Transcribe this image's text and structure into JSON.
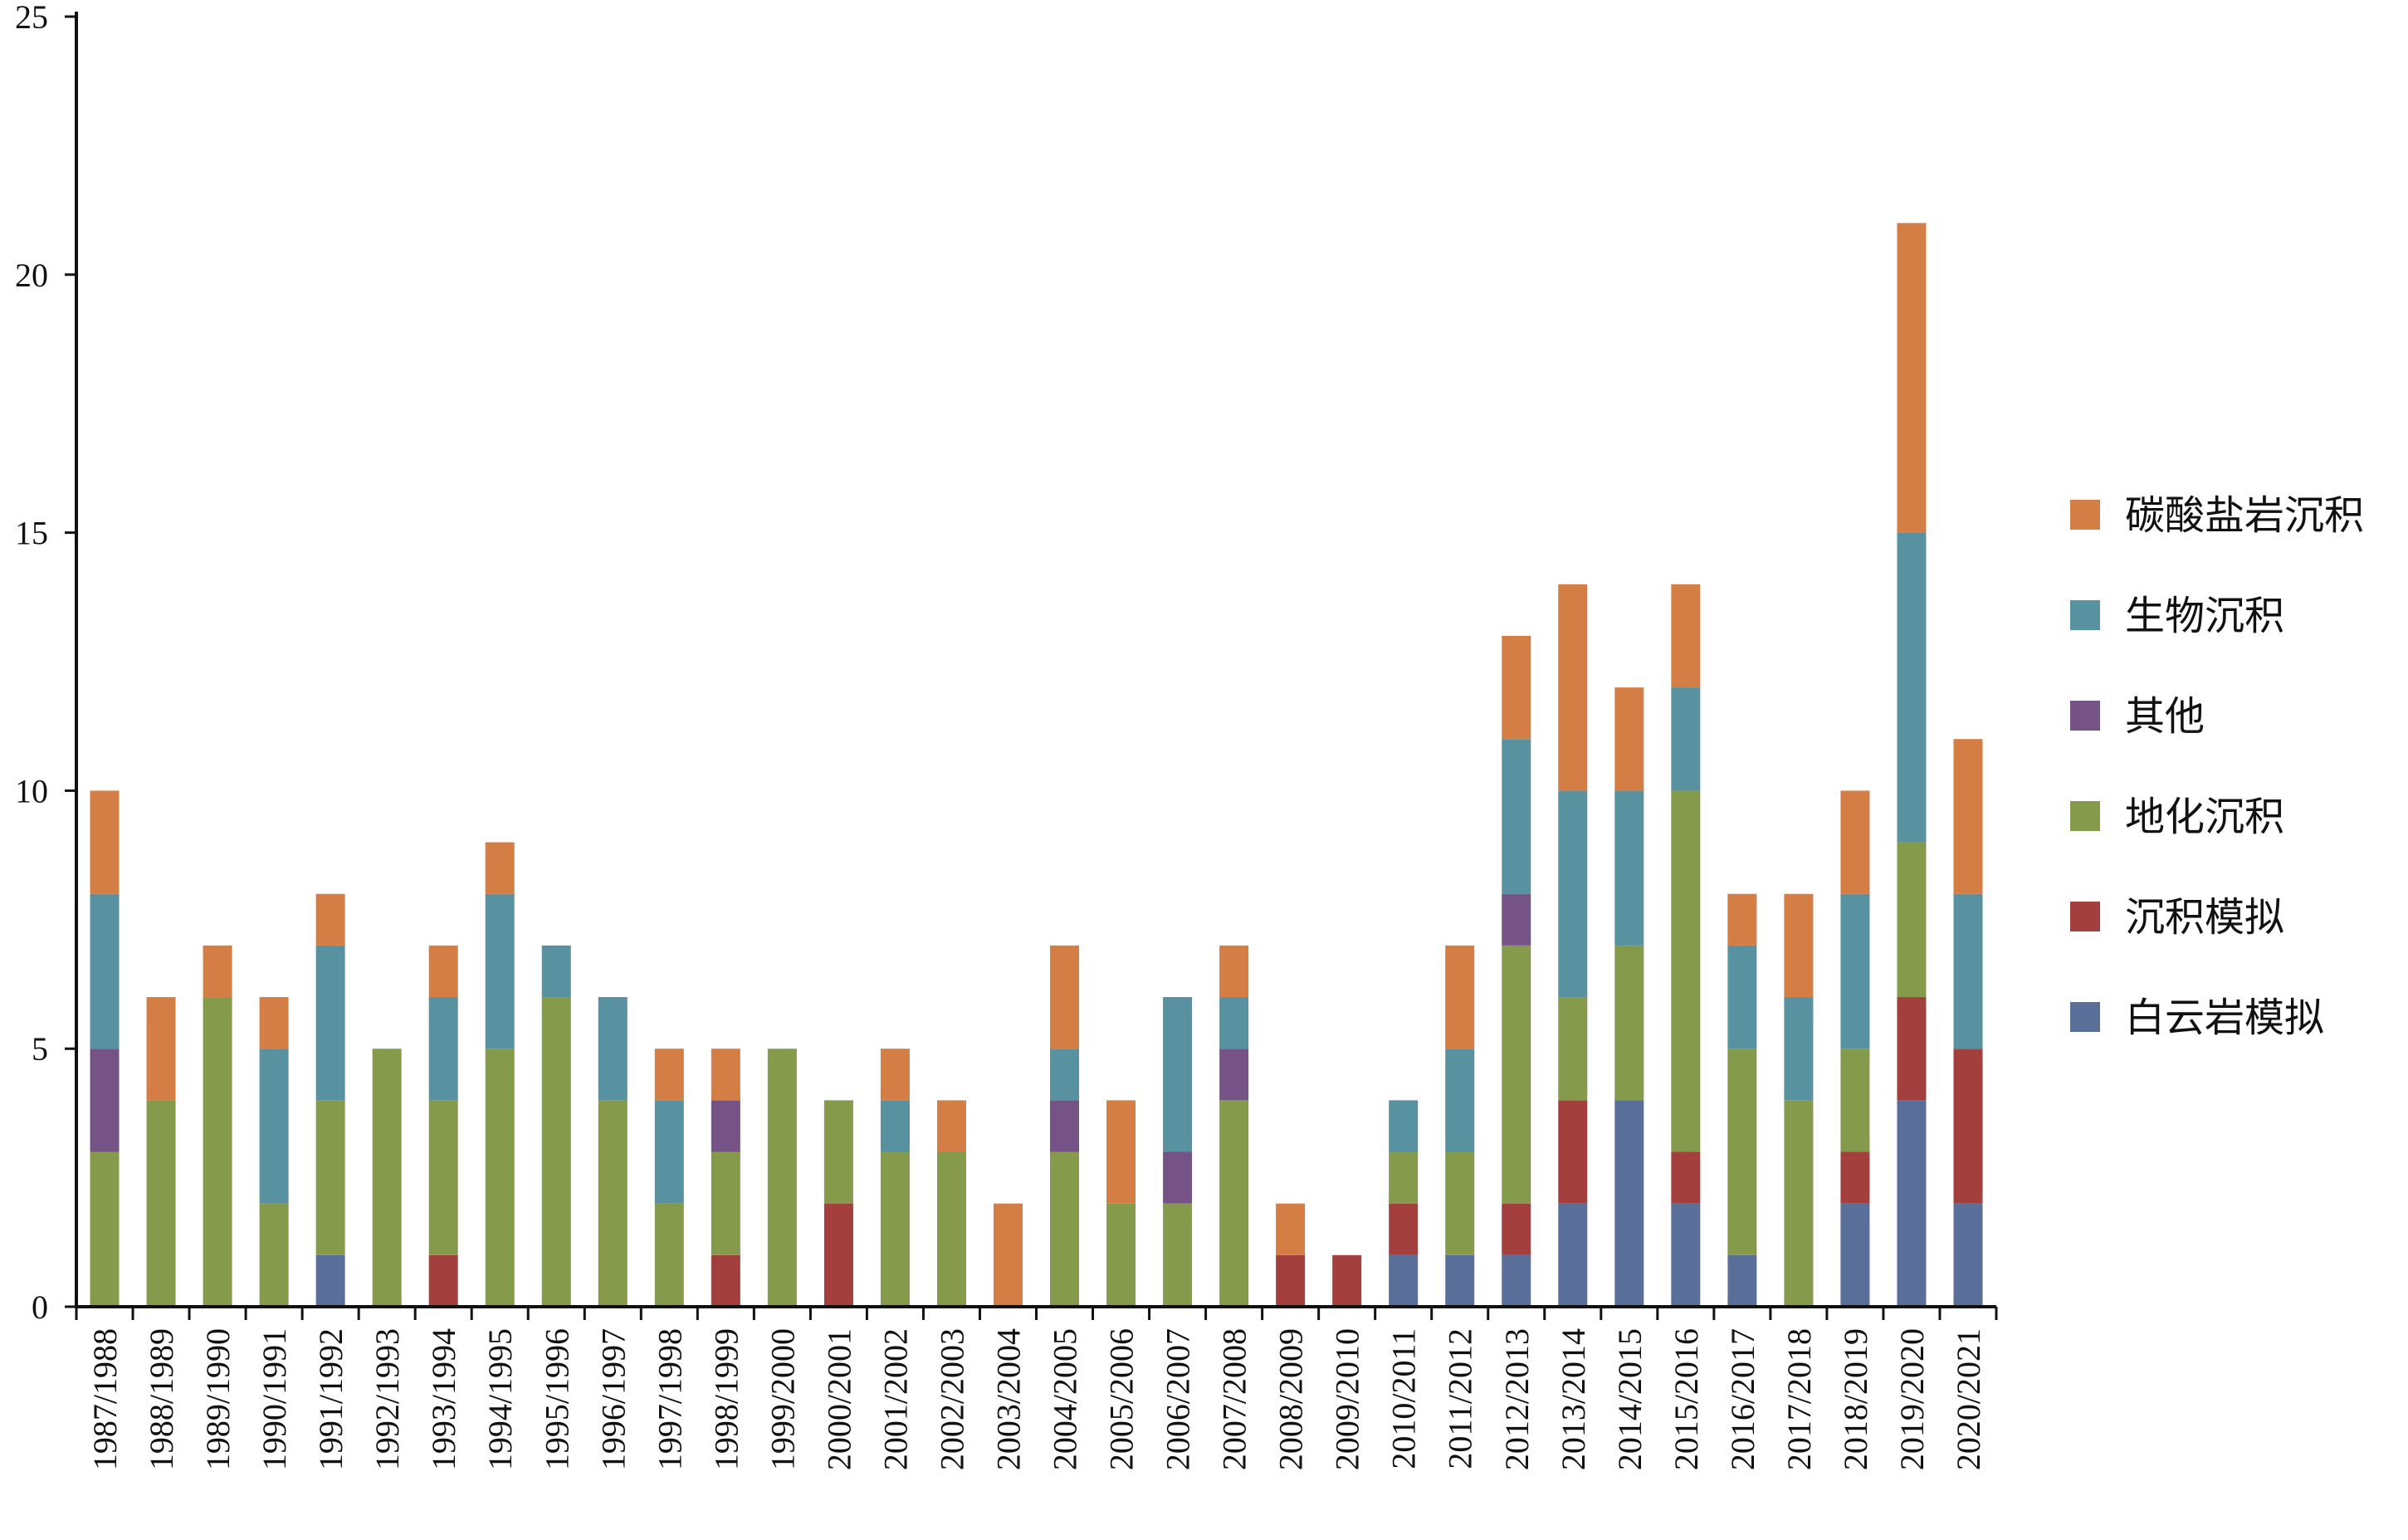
{
  "chart_data": {
    "type": "bar",
    "stacked": true,
    "categories": [
      "1987/1988",
      "1988/1989",
      "1989/1990",
      "1990/1991",
      "1991/1992",
      "1992/1993",
      "1993/1994",
      "1994/1995",
      "1995/1996",
      "1996/1997",
      "1997/1998",
      "1998/1999",
      "1999/2000",
      "2000/2001",
      "2001/2002",
      "2002/2003",
      "2003/2004",
      "2004/2005",
      "2005/2006",
      "2006/2007",
      "2007/2008",
      "2008/2009",
      "2009/2010",
      "2010/2011",
      "2011/2012",
      "2012/2013",
      "2013/2014",
      "2014/2015",
      "2015/2016",
      "2016/2017",
      "2017/2018",
      "2018/2019",
      "2019/2020",
      "2020/2021"
    ],
    "series": [
      {
        "name": "白云岩模拟",
        "color": "#5a6e9a",
        "values": [
          0,
          0,
          0,
          0,
          1,
          0,
          0,
          0,
          0,
          0,
          0,
          0,
          0,
          0,
          0,
          0,
          0,
          0,
          0,
          0,
          0,
          0,
          0,
          1,
          1,
          1,
          2,
          4,
          2,
          1,
          0,
          2,
          4,
          2
        ]
      },
      {
        "name": "沉积模拟",
        "color": "#a33f3c",
        "values": [
          0,
          0,
          0,
          0,
          0,
          0,
          1,
          0,
          0,
          0,
          0,
          1,
          0,
          2,
          0,
          0,
          0,
          0,
          0,
          0,
          0,
          1,
          1,
          1,
          0,
          1,
          2,
          0,
          1,
          0,
          0,
          1,
          2,
          3
        ]
      },
      {
        "name": "地化沉积",
        "color": "#869a4c",
        "values": [
          3,
          4,
          6,
          2,
          3,
          5,
          3,
          5,
          6,
          4,
          2,
          2,
          5,
          2,
          3,
          3,
          0,
          3,
          2,
          2,
          4,
          0,
          0,
          1,
          2,
          5,
          2,
          3,
          7,
          4,
          4,
          2,
          3,
          0
        ]
      },
      {
        "name": "其他",
        "color": "#765387",
        "values": [
          2,
          0,
          0,
          0,
          0,
          0,
          0,
          0,
          0,
          0,
          0,
          1,
          0,
          0,
          0,
          0,
          0,
          1,
          0,
          1,
          1,
          0,
          0,
          0,
          0,
          1,
          0,
          0,
          0,
          0,
          0,
          0,
          0,
          0
        ]
      },
      {
        "name": "生物沉积",
        "color": "#58919f",
        "values": [
          3,
          0,
          0,
          3,
          3,
          0,
          2,
          3,
          1,
          2,
          2,
          0,
          0,
          0,
          1,
          0,
          0,
          1,
          0,
          3,
          1,
          0,
          0,
          1,
          2,
          3,
          4,
          3,
          2,
          2,
          2,
          3,
          6,
          3
        ]
      },
      {
        "name": "碳酸盐岩沉积",
        "color": "#d47d44",
        "values": [
          2,
          2,
          1,
          1,
          1,
          0,
          1,
          1,
          0,
          0,
          1,
          1,
          0,
          0,
          1,
          1,
          2,
          2,
          2,
          0,
          1,
          1,
          0,
          0,
          2,
          2,
          4,
          2,
          2,
          1,
          2,
          2,
          6,
          3
        ]
      }
    ],
    "legend_order": [
      "碳酸盐岩沉积",
      "生物沉积",
      "其他",
      "地化沉积",
      "沉积模拟",
      "白云岩模拟"
    ],
    "ylim": [
      0,
      25
    ],
    "yticks": [
      0,
      5,
      10,
      15,
      20,
      25
    ],
    "legend_position": "right",
    "grid": false
  }
}
